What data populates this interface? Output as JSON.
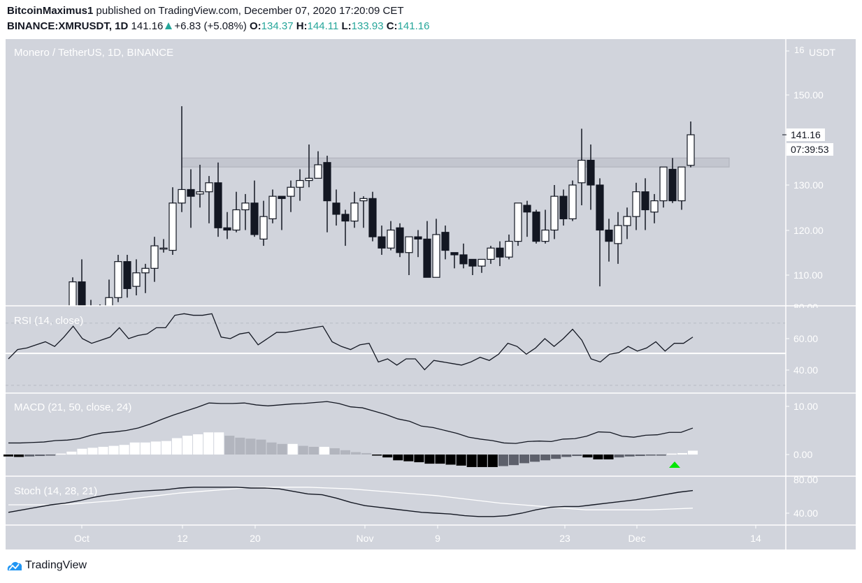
{
  "header": {
    "author": "BitcoinMaximus1",
    "published_text": " published on TradingView.com, December 07, 2020 17:20:09 CET",
    "symbol": "BINANCE:XMRUSDT, 1D",
    "last": "141.16",
    "change": "+6.83 (+5.08%)",
    "o_label": "O:",
    "o": "134.37",
    "h_label": "H:",
    "h": "144.11",
    "l_label": "L:",
    "l": "133.93",
    "c_label": "C:",
    "c": "141.16"
  },
  "panes": {
    "price_title": "Monero / TetherUS, 1D, BINANCE",
    "rsi_title": "RSI (14, close)",
    "macd_title": "MACD (21, 50, close, 24)",
    "stoch_title": "Stoch (14, 28, 21)"
  },
  "price_axis": {
    "unit_label": "USDT",
    "top_label": "16",
    "ticks": [
      "150.00",
      "130.00",
      "120.00",
      "110.00"
    ],
    "current_price_tag": "141.16",
    "countdown_tag": "07:39:53"
  },
  "rsi_axis": {
    "ticks": [
      "80.00",
      "60.00",
      "40.00"
    ]
  },
  "macd_axis": {
    "ticks": [
      "10.00",
      "0.00"
    ]
  },
  "stoch_axis": {
    "ticks": [
      "80.00",
      "40.00"
    ]
  },
  "time_axis": {
    "ticks": [
      "Oct",
      "12",
      "20",
      "Nov",
      "9",
      "23",
      "Dec",
      "14"
    ]
  },
  "brand": {
    "name": "TradingView"
  },
  "colors": {
    "pane_bg": "#d1d4dc",
    "up_candle": "#ffffff",
    "down_candle": "#131722",
    "accent_teal": "#26a69a",
    "macd_signal_arrow": "#00e600",
    "resistance_zone": "#c3c6cf"
  },
  "chart_data": [
    {
      "type": "candlestick",
      "title": "Monero / TetherUS, 1D, BINANCE",
      "ylabel": "USDT",
      "ylim": [
        104,
        157
      ],
      "x_start": "2020-09-30",
      "x_end": "2020-12-07",
      "x_tick_labels": [
        "Oct",
        "12",
        "20",
        "Nov",
        "9",
        "23",
        "Dec",
        "14"
      ],
      "resistance_zone": [
        134,
        136
      ],
      "candles": [
        {
          "o": 102.0,
          "h": 109.5,
          "l": 101.5,
          "c": 108.5
        },
        {
          "o": 108.5,
          "h": 113.5,
          "l": 101.5,
          "c": 102.5
        },
        {
          "o": 102.5,
          "h": 104.5,
          "l": 101.0,
          "c": 101.5
        },
        {
          "o": 101.5,
          "h": 103.5,
          "l": 101.0,
          "c": 102.5
        },
        {
          "o": 102.5,
          "h": 109.0,
          "l": 102.0,
          "c": 105.0
        },
        {
          "o": 105.0,
          "h": 114.5,
          "l": 104.0,
          "c": 113.0
        },
        {
          "o": 113.0,
          "h": 114.5,
          "l": 105.0,
          "c": 107.0
        },
        {
          "o": 107.5,
          "h": 113.5,
          "l": 105.5,
          "c": 110.5
        },
        {
          "o": 110.5,
          "h": 112.5,
          "l": 106.0,
          "c": 111.5
        },
        {
          "o": 111.5,
          "h": 118.5,
          "l": 108.5,
          "c": 116.5
        },
        {
          "o": 116.0,
          "h": 118.0,
          "l": 115.0,
          "c": 116.0
        },
        {
          "o": 115.5,
          "h": 129.5,
          "l": 114.5,
          "c": 126.0
        },
        {
          "o": 126.0,
          "h": 147.5,
          "l": 124.0,
          "c": 129.0
        },
        {
          "o": 129.0,
          "h": 133.5,
          "l": 120.5,
          "c": 127.5
        },
        {
          "o": 128.0,
          "h": 134.5,
          "l": 125.0,
          "c": 128.5
        },
        {
          "o": 128.5,
          "h": 132.0,
          "l": 121.5,
          "c": 130.5
        },
        {
          "o": 130.5,
          "h": 135.0,
          "l": 118.5,
          "c": 120.5
        },
        {
          "o": 120.5,
          "h": 124.0,
          "l": 118.0,
          "c": 120.0
        },
        {
          "o": 120.0,
          "h": 128.5,
          "l": 119.5,
          "c": 124.5
        },
        {
          "o": 124.5,
          "h": 128.0,
          "l": 120.0,
          "c": 126.0
        },
        {
          "o": 126.0,
          "h": 131.0,
          "l": 118.5,
          "c": 119.0
        },
        {
          "o": 118.0,
          "h": 126.5,
          "l": 116.5,
          "c": 123.0
        },
        {
          "o": 122.5,
          "h": 129.0,
          "l": 121.5,
          "c": 127.5
        },
        {
          "o": 127.5,
          "h": 127.5,
          "l": 120.0,
          "c": 127.0
        },
        {
          "o": 127.5,
          "h": 131.0,
          "l": 124.0,
          "c": 129.5
        },
        {
          "o": 129.5,
          "h": 133.5,
          "l": 126.5,
          "c": 131.0
        },
        {
          "o": 131.0,
          "h": 139.0,
          "l": 129.5,
          "c": 131.5
        },
        {
          "o": 131.5,
          "h": 137.5,
          "l": 132.0,
          "c": 134.5
        },
        {
          "o": 135.0,
          "h": 136.5,
          "l": 119.5,
          "c": 126.5
        },
        {
          "o": 126.0,
          "h": 129.0,
          "l": 121.0,
          "c": 123.5
        },
        {
          "o": 123.5,
          "h": 124.5,
          "l": 116.5,
          "c": 122.0
        },
        {
          "o": 122.0,
          "h": 128.5,
          "l": 120.5,
          "c": 126.0
        },
        {
          "o": 126.5,
          "h": 127.5,
          "l": 120.5,
          "c": 127.0
        },
        {
          "o": 127.0,
          "h": 128.5,
          "l": 117.5,
          "c": 118.5
        },
        {
          "o": 118.5,
          "h": 121.0,
          "l": 114.5,
          "c": 116.0
        },
        {
          "o": 116.0,
          "h": 122.0,
          "l": 115.5,
          "c": 120.0
        },
        {
          "o": 120.5,
          "h": 121.5,
          "l": 114.0,
          "c": 115.0
        },
        {
          "o": 115.0,
          "h": 118.5,
          "l": 110.0,
          "c": 118.5
        },
        {
          "o": 118.5,
          "h": 120.0,
          "l": 114.0,
          "c": 118.0
        },
        {
          "o": 118.0,
          "h": 122.0,
          "l": 109.5,
          "c": 109.5
        },
        {
          "o": 109.5,
          "h": 122.5,
          "l": 109.5,
          "c": 119.0
        },
        {
          "o": 119.5,
          "h": 121.0,
          "l": 113.5,
          "c": 115.5
        },
        {
          "o": 115.0,
          "h": 115.0,
          "l": 111.5,
          "c": 114.5
        },
        {
          "o": 114.5,
          "h": 117.0,
          "l": 111.5,
          "c": 112.5
        },
        {
          "o": 113.5,
          "h": 113.5,
          "l": 110.0,
          "c": 112.0
        },
        {
          "o": 112.0,
          "h": 113.0,
          "l": 110.5,
          "c": 113.5
        },
        {
          "o": 113.5,
          "h": 116.5,
          "l": 112.5,
          "c": 116.0
        },
        {
          "o": 116.0,
          "h": 117.5,
          "l": 112.0,
          "c": 114.0
        },
        {
          "o": 114.0,
          "h": 119.0,
          "l": 113.5,
          "c": 117.5
        },
        {
          "o": 117.5,
          "h": 123.0,
          "l": 116.5,
          "c": 126.0
        },
        {
          "o": 125.5,
          "h": 126.5,
          "l": 118.5,
          "c": 124.0
        },
        {
          "o": 124.0,
          "h": 124.5,
          "l": 117.0,
          "c": 117.5
        },
        {
          "o": 117.5,
          "h": 124.5,
          "l": 117.0,
          "c": 120.0
        },
        {
          "o": 120.0,
          "h": 130.0,
          "l": 118.0,
          "c": 127.5
        },
        {
          "o": 127.5,
          "h": 129.0,
          "l": 121.0,
          "c": 122.5
        },
        {
          "o": 122.5,
          "h": 131.0,
          "l": 122.0,
          "c": 130.0
        },
        {
          "o": 130.5,
          "h": 142.5,
          "l": 125.5,
          "c": 135.5
        },
        {
          "o": 135.5,
          "h": 139.0,
          "l": 124.5,
          "c": 130.0
        },
        {
          "o": 130.0,
          "h": 131.5,
          "l": 107.5,
          "c": 120.0
        },
        {
          "o": 120.0,
          "h": 122.5,
          "l": 113.0,
          "c": 117.5
        },
        {
          "o": 117.0,
          "h": 124.0,
          "l": 112.5,
          "c": 121.0
        },
        {
          "o": 121.0,
          "h": 125.0,
          "l": 118.0,
          "c": 123.0
        },
        {
          "o": 123.0,
          "h": 130.5,
          "l": 120.0,
          "c": 128.5
        },
        {
          "o": 128.5,
          "h": 131.5,
          "l": 120.0,
          "c": 124.5
        },
        {
          "o": 124.0,
          "h": 128.0,
          "l": 121.5,
          "c": 126.5
        },
        {
          "o": 126.5,
          "h": 134.0,
          "l": 125.0,
          "c": 134.0
        },
        {
          "o": 133.5,
          "h": 136.0,
          "l": 126.0,
          "c": 126.5
        },
        {
          "o": 126.5,
          "h": 134.0,
          "l": 124.5,
          "c": 134.0
        },
        {
          "o": 134.37,
          "h": 144.11,
          "l": 133.93,
          "c": 141.16
        }
      ]
    },
    {
      "type": "line",
      "title": "RSI (14, close)",
      "ylim": [
        30,
        80
      ],
      "bands": [
        30,
        50,
        70
      ],
      "values": [
        47,
        53,
        54,
        56,
        58,
        55,
        61,
        68,
        60,
        57,
        59,
        61,
        67,
        60,
        62,
        63,
        67,
        67,
        75,
        76,
        75,
        75,
        76,
        61,
        60,
        63,
        64,
        56,
        60,
        64,
        64,
        65,
        66,
        67,
        68,
        58,
        55,
        53,
        56,
        57,
        45,
        47,
        43,
        47,
        47,
        40,
        46,
        45,
        44,
        43,
        45,
        48,
        46,
        50,
        57,
        55,
        50,
        54,
        60,
        55,
        60,
        66,
        59,
        47,
        45,
        50,
        51,
        55,
        52,
        54,
        58,
        52,
        57,
        57,
        61
      ]
    },
    {
      "type": "line+bar",
      "title": "MACD (21, 50, close, 24)",
      "ylim": [
        -2,
        11
      ],
      "macd_line": [
        2.4,
        2.4,
        2.5,
        2.6,
        2.9,
        3.0,
        3.3,
        4.0,
        4.5,
        4.7,
        5.0,
        5.5,
        6.3,
        7.3,
        8.2,
        9.0,
        9.8,
        10.7,
        10.6,
        10.6,
        10.7,
        10.3,
        10.1,
        10.3,
        10.5,
        10.6,
        10.8,
        11.0,
        10.6,
        9.9,
        9.7,
        9.0,
        8.3,
        7.4,
        6.9,
        5.9,
        5.6,
        5.0,
        4.4,
        3.6,
        3.2,
        2.9,
        2.4,
        2.3,
        2.7,
        2.8,
        2.7,
        3.2,
        3.3,
        3.8,
        4.7,
        4.6,
        3.8,
        3.6,
        4.0,
        4.1,
        4.6,
        4.6,
        5.5
      ],
      "histogram": [
        -0.4,
        -0.5,
        -0.4,
        -0.3,
        -0.1,
        0.2,
        0.6,
        1.2,
        1.4,
        1.6,
        1.8,
        2.0,
        2.5,
        2.5,
        2.7,
        2.8,
        3.4,
        3.9,
        4.2,
        4.6,
        4.6,
        3.9,
        3.5,
        3.3,
        3.1,
        2.5,
        2.2,
        2.2,
        1.8,
        1.6,
        1.6,
        1.3,
        0.9,
        0.5,
        0.3,
        -0.2,
        -0.6,
        -1.2,
        -1.4,
        -1.6,
        -1.9,
        -1.9,
        -2.1,
        -2.3,
        -2.6,
        -2.6,
        -2.6,
        -2.4,
        -2.2,
        -1.8,
        -1.5,
        -1.2,
        -0.9,
        -0.5,
        -0.3,
        -0.6,
        -1.0,
        -1.0,
        -0.6,
        -0.4,
        -0.3,
        -0.2,
        -0.1,
        0.2,
        0.3,
        0.8
      ],
      "annotation": "green up-arrow below histogram near Dec 5"
    },
    {
      "type": "line",
      "title": "Stoch (14, 28, 21)",
      "ylim": [
        20,
        90
      ],
      "k_line": [
        41,
        44,
        47,
        50,
        52,
        55,
        59,
        62,
        64,
        66,
        67,
        68,
        70,
        71,
        71,
        71,
        71,
        70,
        70,
        69,
        66,
        63,
        62,
        58,
        53,
        49,
        47,
        45,
        43,
        41,
        40,
        39,
        37,
        36,
        36,
        37,
        40,
        44,
        47,
        48,
        48,
        50,
        52,
        54,
        56,
        59,
        62,
        65,
        67
      ],
      "d_line": [
        50,
        50,
        50,
        51,
        53,
        55,
        58,
        61,
        64,
        66,
        68,
        70,
        71,
        71,
        71,
        70,
        69,
        67,
        65,
        63,
        61,
        58,
        55,
        52,
        50,
        48,
        46,
        44,
        44,
        44,
        44,
        45,
        46
      ]
    }
  ]
}
